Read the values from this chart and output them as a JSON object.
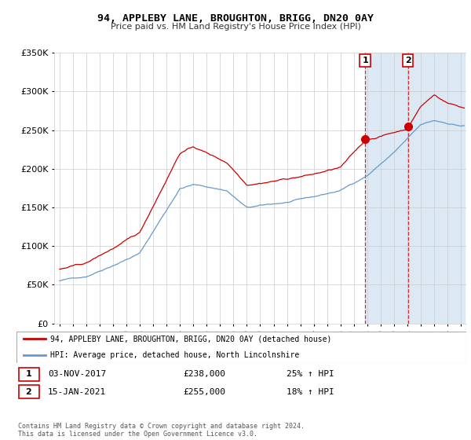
{
  "title": "94, APPLEBY LANE, BROUGHTON, BRIGG, DN20 0AY",
  "subtitle": "Price paid vs. HM Land Registry's House Price Index (HPI)",
  "ylim": [
    0,
    350000
  ],
  "yticks": [
    0,
    50000,
    100000,
    150000,
    200000,
    250000,
    300000,
    350000
  ],
  "background_color": "#ffffff",
  "grid_color": "#cccccc",
  "hpi_line_color": "#6699cc",
  "price_line_color": "#cc0000",
  "highlight_color": "#dce9f5",
  "sale1_date": "03-NOV-2017",
  "sale1_price": 238000,
  "sale1_pct": "25%",
  "sale1_x": 2017.836,
  "sale2_date": "15-JAN-2021",
  "sale2_price": 255000,
  "sale2_pct": "18%",
  "sale2_x": 2021.042,
  "legend_line1": "94, APPLEBY LANE, BROUGHTON, BRIGG, DN20 0AY (detached house)",
  "legend_line2": "HPI: Average price, detached house, North Lincolnshire",
  "footer": "Contains HM Land Registry data © Crown copyright and database right 2024.\nThis data is licensed under the Open Government Licence v3.0."
}
